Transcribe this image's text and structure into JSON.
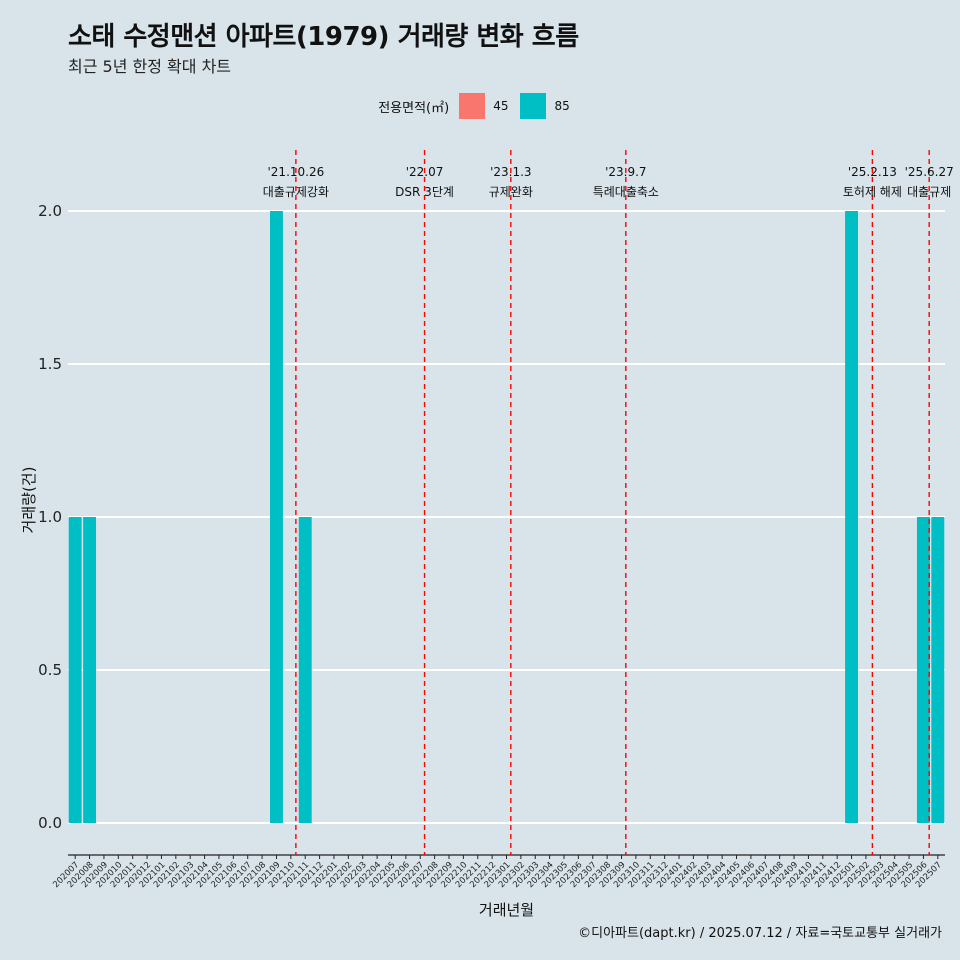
{
  "title": "소태 수정맨션 아파트(1979) 거래량 변화 흐름",
  "subtitle": "최근 5년 한정 확대 차트",
  "legend_title": "전용면적(㎡)",
  "caption": "©디아파트(dapt.kr) / 2025.07.12 / 자료=국토교통부 실거래가",
  "colors": {
    "s45": "#f8766d",
    "s85": "#00bfc4",
    "event_line": "#ff0000",
    "grid": "#ffffff",
    "background": "#d8e4ea"
  },
  "chart_data": {
    "type": "bar",
    "xlabel": "거래년월",
    "ylabel": "거래량(건)",
    "ylim": [
      0,
      2
    ],
    "yticks": [
      "0.0",
      "0.5",
      "1.0",
      "1.5",
      "2.0"
    ],
    "categories": [
      "202007",
      "202008",
      "202009",
      "202010",
      "202011",
      "202012",
      "202101",
      "202102",
      "202103",
      "202104",
      "202105",
      "202106",
      "202107",
      "202108",
      "202109",
      "202110",
      "202111",
      "202112",
      "202201",
      "202202",
      "202203",
      "202204",
      "202205",
      "202206",
      "202207",
      "202208",
      "202209",
      "202210",
      "202211",
      "202212",
      "202301",
      "202302",
      "202303",
      "202304",
      "202305",
      "202306",
      "202307",
      "202308",
      "202309",
      "202310",
      "202311",
      "202312",
      "202401",
      "202402",
      "202403",
      "202404",
      "202405",
      "202406",
      "202407",
      "202408",
      "202409",
      "202410",
      "202411",
      "202412",
      "202501",
      "202502",
      "202503",
      "202504",
      "202505",
      "202506",
      "202507"
    ],
    "series": [
      {
        "name": "45",
        "values": [
          0,
          0,
          0,
          0,
          0,
          0,
          0,
          0,
          0,
          0,
          0,
          0,
          0,
          0,
          0,
          0,
          0,
          0,
          0,
          0,
          0,
          0,
          0,
          0,
          0,
          0,
          0,
          0,
          0,
          0,
          0,
          0,
          0,
          0,
          0,
          0,
          0,
          0,
          0,
          0,
          0,
          0,
          0,
          0,
          0,
          0,
          0,
          0,
          0,
          0,
          0,
          0,
          0,
          0,
          0,
          0,
          0,
          0,
          0,
          0,
          0
        ]
      },
      {
        "name": "85",
        "values": [
          1,
          1,
          0,
          0,
          0,
          0,
          0,
          0,
          0,
          0,
          0,
          0,
          0,
          0,
          2,
          0,
          1,
          0,
          0,
          0,
          0,
          0,
          0,
          0,
          0,
          0,
          0,
          0,
          0,
          0,
          0,
          0,
          0,
          0,
          0,
          0,
          0,
          0,
          0,
          0,
          0,
          0,
          0,
          0,
          0,
          0,
          0,
          0,
          0,
          0,
          0,
          0,
          0,
          0,
          2,
          0,
          0,
          0,
          0,
          1,
          1
        ]
      }
    ],
    "events": [
      {
        "date": "'21.10.26",
        "label": "대출규제강화",
        "x": 15.35
      },
      {
        "date": "'22.07",
        "label": "DSR 3단계",
        "x": 24.3
      },
      {
        "date": "'23.1.3",
        "label": "규제완화",
        "x": 30.3
      },
      {
        "date": "'23.9.7",
        "label": "특례대출축소",
        "x": 38.3
      },
      {
        "date": "'25.2.13",
        "label": "토허제 해제",
        "x": 55.45
      },
      {
        "date": "'25.6.27",
        "label": "대출규제",
        "x": 59.4
      }
    ]
  }
}
